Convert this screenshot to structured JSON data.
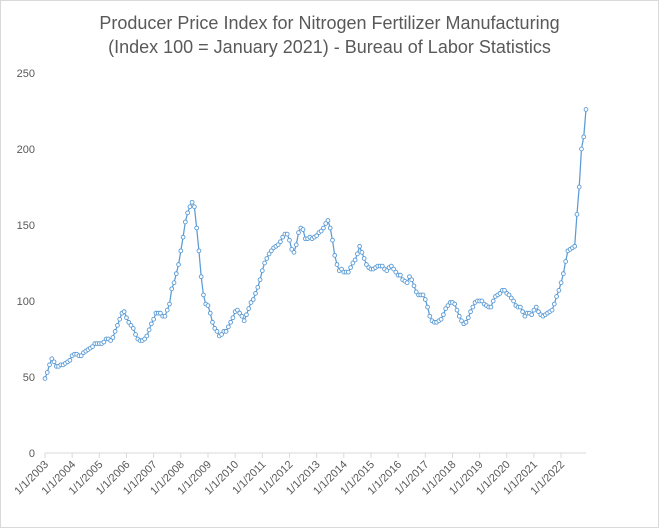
{
  "chart_data": {
    "type": "line",
    "title_line1": "Producer Price Index for Nitrogen Fertilizer Manufacturing",
    "title_line2": "(Index 100 = January 2021) - Bureau of Labor Statistics",
    "xlabel": "",
    "ylabel": "",
    "ylim": [
      0,
      250
    ],
    "y_ticks": [
      "0",
      "50",
      "100",
      "150",
      "200",
      "250"
    ],
    "x_tick_labels": [
      "1/1/2003",
      "1/1/2004",
      "1/1/2005",
      "1/1/2006",
      "1/1/2007",
      "1/1/2008",
      "1/1/2009",
      "1/1/2010",
      "1/1/2011",
      "1/1/2012",
      "1/1/2013",
      "1/1/2014",
      "1/1/2015",
      "1/1/2016",
      "1/1/2017",
      "1/1/2018",
      "1/1/2019",
      "1/1/2020",
      "1/1/2021",
      "1/1/2022"
    ],
    "x_start": "2003-01",
    "grid": false,
    "legend": "none",
    "series_color": "#5b9bd5",
    "series": [
      {
        "name": "",
        "values": [
          49,
          53,
          58,
          62,
          60,
          57,
          57,
          58,
          58,
          59,
          60,
          61,
          64,
          65,
          65,
          64,
          64,
          66,
          67,
          68,
          69,
          70,
          72,
          72,
          72,
          72,
          73,
          75,
          75,
          74,
          76,
          80,
          84,
          88,
          92,
          93,
          89,
          86,
          84,
          82,
          78,
          75,
          74,
          74,
          75,
          77,
          81,
          85,
          88,
          92,
          92,
          92,
          90,
          90,
          94,
          98,
          108,
          112,
          118,
          124,
          133,
          142,
          152,
          158,
          162,
          165,
          162,
          148,
          133,
          116,
          104,
          98,
          97,
          92,
          86,
          82,
          80,
          77,
          78,
          80,
          80,
          83,
          86,
          89,
          93,
          94,
          92,
          90,
          87,
          91,
          95,
          99,
          101,
          105,
          109,
          114,
          120,
          125,
          128,
          131,
          133,
          135,
          136,
          137,
          139,
          142,
          144,
          144,
          140,
          134,
          132,
          137,
          145,
          148,
          147,
          141,
          141,
          142,
          141,
          142,
          143,
          145,
          146,
          148,
          151,
          153,
          148,
          140,
          130,
          124,
          120,
          121,
          119,
          119,
          119,
          122,
          125,
          127,
          131,
          136,
          132,
          128,
          124,
          122,
          121,
          121,
          122,
          123,
          123,
          123,
          121,
          120,
          122,
          123,
          121,
          119,
          117,
          117,
          114,
          113,
          112,
          116,
          114,
          110,
          106,
          104,
          104,
          104,
          101,
          96,
          90,
          87,
          86,
          86,
          87,
          88,
          91,
          95,
          97,
          99,
          99,
          98,
          94,
          90,
          87,
          85,
          86,
          89,
          93,
          96,
          99,
          100,
          100,
          100,
          98,
          97,
          96,
          96,
          100,
          103,
          104,
          105,
          107,
          107,
          105,
          104,
          102,
          100,
          97,
          96,
          96,
          93,
          90,
          92,
          92,
          91,
          94,
          96,
          93,
          91,
          90,
          91,
          92,
          93,
          94,
          98,
          103,
          107,
          112,
          118,
          126,
          133,
          134,
          135,
          136,
          157,
          175,
          200,
          208,
          226
        ]
      }
    ]
  }
}
